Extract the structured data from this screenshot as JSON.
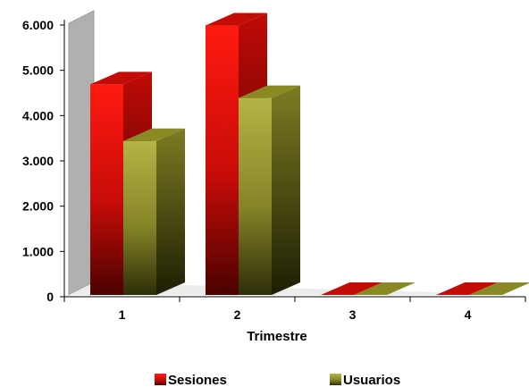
{
  "chart_data": {
    "type": "bar",
    "categories": [
      "1",
      "2",
      "3",
      "4"
    ],
    "series": [
      {
        "name": "Sesiones",
        "values": [
          4650,
          5950,
          0,
          0
        ],
        "color": "#e8120c"
      },
      {
        "name": "Usuarios",
        "values": [
          3400,
          4350,
          0,
          0
        ],
        "color": "#9a9a2a"
      }
    ],
    "xlabel": "Trimestre",
    "ylabel": "",
    "ylim": [
      0,
      6000
    ],
    "yticks": [
      "0",
      "1.000",
      "2.000",
      "3.000",
      "4.000",
      "5.000",
      "6.000"
    ],
    "grid": false,
    "legend_position": "bottom",
    "three_d": true,
    "wall_color": "#b0b0b0"
  }
}
